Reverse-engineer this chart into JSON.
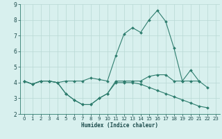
{
  "x": [
    0,
    1,
    2,
    3,
    4,
    5,
    6,
    7,
    8,
    9,
    10,
    11,
    12,
    13,
    14,
    15,
    16,
    17,
    18,
    19,
    20,
    21,
    22,
    23
  ],
  "line1": [
    4.1,
    3.9,
    4.1,
    4.1,
    4.0,
    4.1,
    4.1,
    4.1,
    4.3,
    4.2,
    4.1,
    5.7,
    7.1,
    7.5,
    7.2,
    8.0,
    8.6,
    7.9,
    6.2,
    4.1,
    4.8,
    4.1,
    3.7,
    null
  ],
  "line2": [
    4.1,
    3.9,
    4.1,
    4.1,
    4.0,
    3.3,
    2.9,
    2.6,
    2.6,
    3.0,
    3.3,
    4.1,
    4.1,
    4.1,
    4.1,
    4.4,
    4.5,
    4.5,
    4.1,
    4.1,
    4.1,
    4.1,
    null,
    null
  ],
  "line3": [
    4.1,
    3.9,
    4.1,
    4.1,
    4.0,
    3.3,
    2.9,
    2.6,
    2.6,
    3.0,
    3.3,
    4.0,
    4.0,
    4.0,
    3.9,
    3.7,
    3.5,
    3.3,
    3.1,
    2.9,
    2.7,
    2.5,
    2.4,
    null
  ],
  "line_color": "#2e7d6e",
  "bg_color": "#d8f0ee",
  "grid_color": "#b8d8d4",
  "xlabel": "Humidex (Indice chaleur)",
  "ylim": [
    2,
    9
  ],
  "xlim": [
    -0.5,
    23.5
  ],
  "yticks": [
    2,
    3,
    4,
    5,
    6,
    7,
    8,
    9
  ],
  "xticks": [
    0,
    1,
    2,
    3,
    4,
    5,
    6,
    7,
    8,
    9,
    10,
    11,
    12,
    13,
    14,
    15,
    16,
    17,
    18,
    19,
    20,
    21,
    22,
    23
  ],
  "title_color": "#1a4a4a",
  "tick_fontsize": 5,
  "xlabel_fontsize": 5.5,
  "marker_size": 2.0,
  "linewidth": 0.8
}
